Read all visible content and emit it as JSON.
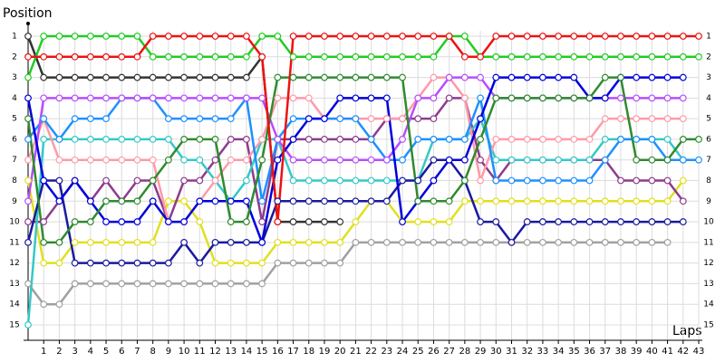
{
  "chart_data": {
    "type": "line",
    "y_label": "Position",
    "x_label": "Laps",
    "x": [
      0,
      1,
      2,
      3,
      4,
      5,
      6,
      7,
      8,
      9,
      10,
      11,
      12,
      13,
      14,
      15,
      16,
      17,
      18,
      19,
      20,
      21,
      22,
      23,
      24,
      25,
      26,
      27,
      28,
      29,
      30,
      31,
      32,
      33,
      34,
      35,
      36,
      37,
      38,
      39,
      40,
      41,
      42,
      43
    ],
    "xlim": [
      0,
      43
    ],
    "xticks": [
      1,
      2,
      3,
      4,
      5,
      6,
      7,
      8,
      9,
      10,
      11,
      12,
      13,
      14,
      15,
      16,
      17,
      18,
      19,
      20,
      21,
      22,
      23,
      24,
      25,
      26,
      27,
      28,
      29,
      30,
      31,
      32,
      33,
      34,
      35,
      36,
      37,
      38,
      39,
      40,
      41,
      42,
      43
    ],
    "ylim": [
      15,
      1
    ],
    "yticks": [
      1,
      2,
      3,
      4,
      5,
      6,
      7,
      8,
      9,
      10,
      11,
      12,
      13,
      14,
      15
    ],
    "grid": true,
    "series": [
      {
        "color": "#a0a0a0",
        "values": [
          13,
          14,
          14,
          13,
          13,
          13,
          13,
          13,
          13,
          13,
          13,
          13,
          13,
          13,
          13,
          13,
          12,
          12,
          12,
          12,
          12,
          11,
          11,
          11,
          11,
          11,
          11,
          11,
          11,
          11,
          11,
          11,
          11,
          11,
          11,
          11,
          11,
          11,
          11,
          11,
          11,
          11,
          null,
          null
        ]
      },
      {
        "color": "#e0e020",
        "values": [
          8,
          12,
          12,
          11,
          11,
          11,
          11,
          11,
          11,
          9,
          9,
          10,
          12,
          12,
          12,
          12,
          11,
          11,
          11,
          11,
          11,
          10,
          9,
          9,
          10,
          10,
          10,
          10,
          9,
          9,
          9,
          9,
          9,
          9,
          9,
          9,
          9,
          9,
          9,
          9,
          9,
          9,
          8,
          null
        ]
      },
      {
        "color": "#8e3b8e",
        "values": [
          10,
          10,
          9,
          8,
          9,
          8,
          9,
          8,
          8,
          10,
          8,
          8,
          7,
          6,
          6,
          10,
          6,
          6,
          6,
          6,
          6,
          6,
          6,
          5,
          5,
          5,
          5,
          4,
          4,
          7,
          8,
          7,
          7,
          7,
          7,
          7,
          7,
          7,
          8,
          8,
          8,
          8,
          9,
          null
        ]
      },
      {
        "color": "#36c8c8",
        "values": [
          15,
          6,
          6,
          6,
          6,
          6,
          6,
          6,
          6,
          6,
          7,
          7,
          8,
          9,
          8,
          6,
          6,
          8,
          8,
          8,
          8,
          8,
          8,
          8,
          8,
          8,
          6,
          6,
          6,
          5,
          7,
          7,
          7,
          7,
          7,
          7,
          7,
          6,
          6,
          6,
          6,
          6,
          7,
          null
        ]
      },
      {
        "color": "#ff9aa8",
        "values": [
          7,
          5,
          7,
          7,
          7,
          7,
          7,
          7,
          7,
          10,
          10,
          9,
          8,
          7,
          7,
          6,
          4,
          4,
          4,
          5,
          5,
          5,
          5,
          5,
          5,
          4,
          3,
          3,
          4,
          8,
          6,
          6,
          6,
          6,
          6,
          6,
          6,
          5,
          5,
          5,
          5,
          5,
          5,
          null
        ]
      },
      {
        "color": "#1e90ff",
        "values": [
          6,
          5,
          6,
          5,
          5,
          5,
          4,
          4,
          4,
          5,
          5,
          5,
          5,
          5,
          4,
          9,
          6,
          5,
          5,
          5,
          5,
          5,
          6,
          7,
          7,
          6,
          6,
          6,
          6,
          4,
          8,
          8,
          8,
          8,
          8,
          8,
          8,
          7,
          6,
          6,
          6,
          7,
          7,
          7
        ]
      },
      {
        "color": "#b84dff",
        "values": [
          9,
          4,
          4,
          4,
          4,
          4,
          4,
          4,
          4,
          4,
          4,
          4,
          4,
          4,
          4,
          4,
          6,
          7,
          7,
          7,
          7,
          7,
          7,
          7,
          6,
          4,
          4,
          3,
          3,
          3,
          4,
          4,
          4,
          4,
          4,
          4,
          4,
          4,
          4,
          4,
          4,
          4,
          4,
          null
        ]
      },
      {
        "color": "#1a1aa0",
        "values": [
          11,
          8,
          8,
          12,
          12,
          12,
          12,
          12,
          12,
          12,
          11,
          12,
          11,
          11,
          11,
          11,
          9,
          9,
          9,
          9,
          9,
          9,
          9,
          9,
          8,
          8,
          7,
          7,
          8,
          10,
          10,
          11,
          10,
          10,
          10,
          10,
          10,
          10,
          10,
          10,
          10,
          10,
          10,
          null
        ]
      },
      {
        "color": "#0000dd",
        "values": [
          4,
          8,
          9,
          8,
          9,
          10,
          10,
          10,
          9,
          10,
          10,
          9,
          9,
          9,
          9,
          11,
          7,
          6,
          5,
          5,
          4,
          4,
          4,
          4,
          10,
          9,
          8,
          7,
          7,
          5,
          3,
          3,
          3,
          3,
          3,
          3,
          4,
          4,
          3,
          3,
          3,
          3,
          3,
          null
        ]
      },
      {
        "color": "#2e8b2e",
        "values": [
          5,
          11,
          11,
          10,
          10,
          9,
          9,
          9,
          8,
          7,
          6,
          6,
          6,
          10,
          10,
          7,
          3,
          3,
          3,
          3,
          3,
          3,
          3,
          3,
          3,
          9,
          9,
          9,
          8,
          6,
          4,
          4,
          4,
          4,
          4,
          4,
          4,
          3,
          3,
          7,
          7,
          7,
          6,
          6
        ]
      },
      {
        "color": "#333333",
        "values": [
          1,
          3,
          3,
          3,
          3,
          3,
          3,
          3,
          3,
          3,
          3,
          3,
          3,
          3,
          3,
          2,
          10,
          10,
          10,
          10,
          10,
          null,
          null,
          null,
          null,
          null,
          null,
          null,
          null,
          null,
          null,
          null,
          null,
          null,
          null,
          null,
          null,
          null,
          null,
          null,
          null,
          null,
          null,
          null
        ]
      },
      {
        "color": "#22cc22",
        "values": [
          3,
          1,
          1,
          1,
          1,
          1,
          1,
          1,
          2,
          2,
          2,
          2,
          2,
          2,
          2,
          1,
          1,
          2,
          2,
          2,
          2,
          2,
          2,
          2,
          2,
          2,
          2,
          1,
          1,
          2,
          2,
          2,
          2,
          2,
          2,
          2,
          2,
          2,
          2,
          2,
          2,
          2,
          2,
          2
        ]
      },
      {
        "color": "#ee1111",
        "values": [
          2,
          2,
          2,
          2,
          2,
          2,
          2,
          2,
          1,
          1,
          1,
          1,
          1,
          1,
          1,
          2,
          10,
          1,
          1,
          1,
          1,
          1,
          1,
          1,
          1,
          1,
          1,
          1,
          2,
          2,
          1,
          1,
          1,
          1,
          1,
          1,
          1,
          1,
          1,
          1,
          1,
          1,
          1,
          1
        ]
      }
    ]
  }
}
